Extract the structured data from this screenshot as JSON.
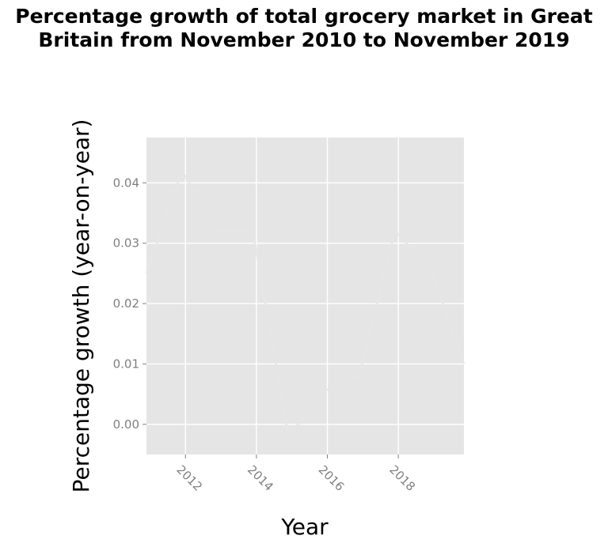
{
  "chart_data": {
    "type": "line",
    "title": "Percentage growth of total grocery market in Great Britain from November 2010 to November 2019",
    "xlabel": "Year",
    "ylabel": "Percentage growth (year-on-year)",
    "xlim": [
      2010.9,
      2019.85
    ],
    "ylim": [
      -0.005,
      0.0475
    ],
    "x_ticks": [
      2012,
      2014,
      2016,
      2018
    ],
    "x_tick_labels": [
      "2012",
      "2014",
      "2016",
      "2018"
    ],
    "y_ticks": [
      0.0,
      0.01,
      0.02,
      0.03,
      0.04
    ],
    "y_tick_labels": [
      "0.00",
      "0.01",
      "0.02",
      "0.03",
      "0.04"
    ],
    "grid": true,
    "series": [
      {
        "x": [
          2010.9,
          2011.9,
          2012.9,
          2013.9,
          2014.9,
          2015.9,
          2016.9,
          2017.9,
          2018.9,
          2019.85
        ],
        "y": [
          0.025,
          0.042,
          0.032,
          0.032,
          -0.002,
          0.0055,
          0.008,
          0.032,
          0.026,
          0.01
        ],
        "color": "#e6e6e6"
      }
    ],
    "panel_color": "#e5e5e5",
    "grid_color": "#ffffff"
  }
}
